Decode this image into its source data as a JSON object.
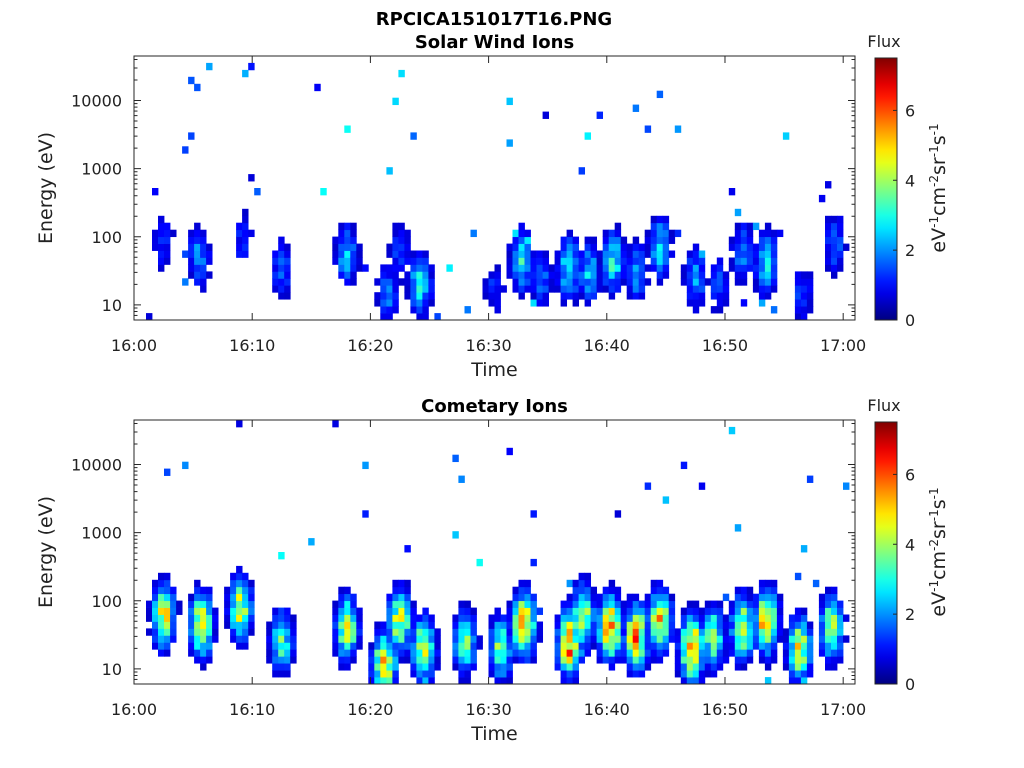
{
  "figure_title": "RPCICA151017T16.PNG",
  "chart_data": [
    {
      "type": "heatmap",
      "title": "Solar Wind Ions",
      "xlabel": "Time",
      "ylabel": "Energy (eV)",
      "x_ticks": [
        "16:00",
        "16:10",
        "16:20",
        "16:30",
        "16:40",
        "16:50",
        "17:00"
      ],
      "xlim_minutes": [
        0,
        61
      ],
      "y_scale": "log",
      "y_ticks": [
        10,
        100,
        1000,
        10000
      ],
      "y_tick_labels": [
        "10",
        "100",
        "1000",
        "10000"
      ],
      "ylim": [
        6,
        45000
      ],
      "colorbar": {
        "title": "Flux",
        "label": "eV-1cm-2sr-1s-1",
        "ticks": [
          0,
          2,
          4,
          6
        ],
        "range": [
          0,
          7.5
        ],
        "colormap": "jet"
      },
      "bursts": [
        {
          "t": 2.5,
          "e_center": 80,
          "peak": 1.3
        },
        {
          "t": 5.5,
          "e_center": 50,
          "peak": 2.2
        },
        {
          "t": 9.2,
          "e_center": 90,
          "peak": 1.3
        },
        {
          "t": 12.5,
          "e_center": 35,
          "peak": 1.8
        },
        {
          "t": 18.0,
          "e_center": 55,
          "peak": 2.5
        },
        {
          "t": 21.5,
          "e_center": 15,
          "peak": 1.9
        },
        {
          "t": 22.5,
          "e_center": 60,
          "peak": 1.5
        },
        {
          "t": 24.2,
          "e_center": 20,
          "peak": 3.0
        },
        {
          "t": 30.5,
          "e_center": 18,
          "peak": 1.3
        },
        {
          "t": 32.8,
          "e_center": 45,
          "peak": 3.0
        },
        {
          "t": 34.5,
          "e_center": 25,
          "peak": 1.8
        },
        {
          "t": 36.8,
          "e_center": 35,
          "peak": 3.2
        },
        {
          "t": 38.5,
          "e_center": 30,
          "peak": 2.5
        },
        {
          "t": 40.5,
          "e_center": 45,
          "peak": 3.2
        },
        {
          "t": 42.5,
          "e_center": 30,
          "peak": 2.2
        },
        {
          "t": 44.5,
          "e_center": 70,
          "peak": 2.8
        },
        {
          "t": 47.5,
          "e_center": 25,
          "peak": 2.2
        },
        {
          "t": 49.5,
          "e_center": 20,
          "peak": 1.5
        },
        {
          "t": 51.5,
          "e_center": 60,
          "peak": 2.0
        },
        {
          "t": 53.5,
          "e_center": 40,
          "peak": 3.0
        },
        {
          "t": 56.5,
          "e_center": 15,
          "peak": 1.5
        },
        {
          "t": 59.3,
          "e_center": 80,
          "peak": 1.8
        }
      ]
    },
    {
      "type": "heatmap",
      "title": "Cometary Ions",
      "xlabel": "Time",
      "ylabel": "Energy (eV)",
      "x_ticks": [
        "16:00",
        "16:10",
        "16:20",
        "16:30",
        "16:40",
        "16:50",
        "17:00"
      ],
      "xlim_minutes": [
        0,
        61
      ],
      "y_scale": "log",
      "y_ticks": [
        10,
        100,
        1000,
        10000
      ],
      "y_tick_labels": [
        "10",
        "100",
        "1000",
        "10000"
      ],
      "ylim": [
        6,
        45000
      ],
      "colorbar": {
        "title": "Flux",
        "label": "eV-1cm-2sr-1s-1",
        "ticks": [
          0,
          2,
          4,
          6
        ],
        "range": [
          0,
          7.5
        ],
        "colormap": "jet"
      },
      "bursts": [
        {
          "t": 2.5,
          "e_center": 60,
          "peak": 5.0
        },
        {
          "t": 5.7,
          "e_center": 45,
          "peak": 5.2
        },
        {
          "t": 9.0,
          "e_center": 80,
          "peak": 4.8
        },
        {
          "t": 12.5,
          "e_center": 25,
          "peak": 3.5
        },
        {
          "t": 18.0,
          "e_center": 40,
          "peak": 4.8
        },
        {
          "t": 21.2,
          "e_center": 12,
          "peak": 5.5
        },
        {
          "t": 22.5,
          "e_center": 50,
          "peak": 4.8
        },
        {
          "t": 24.5,
          "e_center": 20,
          "peak": 5.0
        },
        {
          "t": 28.0,
          "e_center": 25,
          "peak": 3.8
        },
        {
          "t": 31.0,
          "e_center": 20,
          "peak": 4.0
        },
        {
          "t": 33.0,
          "e_center": 45,
          "peak": 6.0
        },
        {
          "t": 36.8,
          "e_center": 25,
          "peak": 6.3
        },
        {
          "t": 38.0,
          "e_center": 60,
          "peak": 4.8
        },
        {
          "t": 40.3,
          "e_center": 40,
          "peak": 6.3
        },
        {
          "t": 42.5,
          "e_center": 30,
          "peak": 6.0
        },
        {
          "t": 44.5,
          "e_center": 50,
          "peak": 5.5
        },
        {
          "t": 47.2,
          "e_center": 20,
          "peak": 6.5
        },
        {
          "t": 49.0,
          "e_center": 30,
          "peak": 4.0
        },
        {
          "t": 51.5,
          "e_center": 40,
          "peak": 5.0
        },
        {
          "t": 53.5,
          "e_center": 50,
          "peak": 5.8
        },
        {
          "t": 56.3,
          "e_center": 20,
          "peak": 5.0
        },
        {
          "t": 59.0,
          "e_center": 40,
          "peak": 4.5
        }
      ]
    }
  ]
}
